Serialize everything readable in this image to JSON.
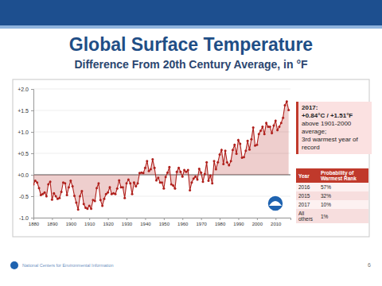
{
  "chart_data": {
    "type": "line",
    "title": "Global Surface Temperature",
    "subtitle": "Difference From 20th Century Average, in °F",
    "x": [
      1880,
      1881,
      1882,
      1883,
      1884,
      1885,
      1886,
      1887,
      1888,
      1889,
      1890,
      1891,
      1892,
      1893,
      1894,
      1895,
      1896,
      1897,
      1898,
      1899,
      1900,
      1901,
      1902,
      1903,
      1904,
      1905,
      1906,
      1907,
      1908,
      1909,
      1910,
      1911,
      1912,
      1913,
      1914,
      1915,
      1916,
      1917,
      1918,
      1919,
      1920,
      1921,
      1922,
      1923,
      1924,
      1925,
      1926,
      1927,
      1928,
      1929,
      1930,
      1931,
      1932,
      1933,
      1934,
      1935,
      1936,
      1937,
      1938,
      1939,
      1940,
      1941,
      1942,
      1943,
      1944,
      1945,
      1946,
      1947,
      1948,
      1949,
      1950,
      1951,
      1952,
      1953,
      1954,
      1955,
      1956,
      1957,
      1958,
      1959,
      1960,
      1961,
      1962,
      1963,
      1964,
      1965,
      1966,
      1967,
      1968,
      1969,
      1970,
      1971,
      1972,
      1973,
      1974,
      1975,
      1976,
      1977,
      1978,
      1979,
      1980,
      1981,
      1982,
      1983,
      1984,
      1985,
      1986,
      1987,
      1988,
      1989,
      1990,
      1991,
      1992,
      1993,
      1994,
      1995,
      1996,
      1997,
      1998,
      1999,
      2000,
      2001,
      2002,
      2003,
      2004,
      2005,
      2006,
      2007,
      2008,
      2009,
      2010,
      2011,
      2012,
      2013,
      2014,
      2015,
      2016,
      2017
    ],
    "series": [
      {
        "color": "#b0201c",
        "marker": "circle",
        "values": [
          -0.22,
          -0.14,
          -0.18,
          -0.31,
          -0.47,
          -0.45,
          -0.41,
          -0.5,
          -0.22,
          -0.16,
          -0.58,
          -0.43,
          -0.5,
          -0.56,
          -0.54,
          -0.4,
          -0.18,
          -0.2,
          -0.47,
          -0.29,
          -0.14,
          -0.27,
          -0.49,
          -0.65,
          -0.81,
          -0.5,
          -0.38,
          -0.68,
          -0.77,
          -0.79,
          -0.72,
          -0.79,
          -0.59,
          -0.61,
          -0.31,
          -0.2,
          -0.59,
          -0.72,
          -0.56,
          -0.45,
          -0.41,
          -0.29,
          -0.45,
          -0.43,
          -0.45,
          -0.32,
          -0.13,
          -0.29,
          -0.29,
          -0.54,
          -0.2,
          -0.11,
          -0.2,
          -0.45,
          -0.18,
          -0.27,
          -0.2,
          0.04,
          0.05,
          0.04,
          0.16,
          0.32,
          0.09,
          0.13,
          0.36,
          0.16,
          -0.13,
          -0.07,
          -0.18,
          -0.18,
          -0.32,
          -0.05,
          0.05,
          0.18,
          -0.22,
          -0.25,
          -0.32,
          0.07,
          0.16,
          0.07,
          -0.04,
          0.11,
          0.07,
          0.11,
          -0.36,
          -0.18,
          -0.09,
          -0.04,
          -0.11,
          0.14,
          0.05,
          -0.16,
          0.02,
          0.29,
          -0.14,
          -0.02,
          -0.2,
          0.32,
          0.13,
          0.29,
          0.47,
          0.58,
          0.25,
          0.56,
          0.29,
          0.22,
          0.32,
          0.58,
          0.7,
          0.49,
          0.81,
          0.72,
          0.4,
          0.41,
          0.56,
          0.79,
          0.59,
          0.83,
          1.1,
          0.68,
          0.7,
          0.95,
          1.03,
          1.12,
          0.95,
          1.21,
          1.12,
          1.12,
          0.97,
          1.15,
          1.26,
          1.04,
          1.12,
          1.21,
          1.33,
          1.62,
          1.71,
          1.51
        ]
      }
    ],
    "xlim": [
      1880,
      2018
    ],
    "xticks": [
      1880,
      1890,
      1900,
      1910,
      1920,
      1930,
      1940,
      1950,
      1960,
      1970,
      1980,
      1990,
      2000,
      2010
    ],
    "ylim": [
      -1,
      2
    ],
    "yticks": [
      {
        "value": -1,
        "label": "-1.0"
      },
      {
        "value": -0.5,
        "label": "-0.5"
      },
      {
        "value": 0,
        "label": "+0.0"
      },
      {
        "value": 0.5,
        "label": "+0.5"
      },
      {
        "value": 1,
        "label": "+1.0"
      },
      {
        "value": 1.5,
        "label": "+1.5"
      },
      {
        "value": 2,
        "label": "+2.0"
      }
    ],
    "grid": true
  },
  "callout": {
    "lines": [
      "2017:",
      "+0.84°C / +1.51°F",
      "above 1901-2000 average;",
      "3rd warmest year of record"
    ]
  },
  "table": {
    "header": [
      "Year",
      "Probability of Warmest Rank"
    ],
    "rows": [
      [
        "2016",
        "57%"
      ],
      [
        "2015",
        "32%"
      ],
      [
        "2017",
        "10%"
      ],
      [
        "All others",
        "1%"
      ]
    ]
  },
  "footer": {
    "organization": "National Centers for Environmental Information",
    "page": "6"
  }
}
